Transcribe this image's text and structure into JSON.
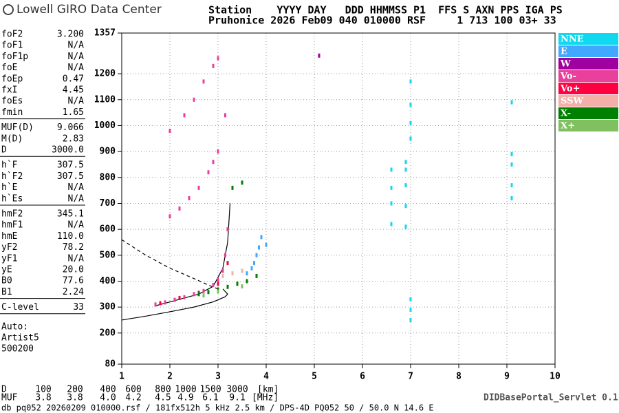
{
  "header": {
    "logo": "Lowell GIRO Data Center",
    "line1": "Station    YYYY DAY   DDD HHMMSS P1  FFS S AXN PPS IGA PS",
    "line2": "Pruhonice 2026 Feb09 040 010000 RSF     1 713 100 03+ 33"
  },
  "parameters": [
    [
      [
        "foF2",
        "3.200"
      ],
      [
        "foF1",
        "N/A"
      ],
      [
        "foF1p",
        "N/A"
      ],
      [
        "foE",
        "N/A"
      ],
      [
        "foEp",
        "0.47"
      ],
      [
        "fxI",
        "4.45"
      ],
      [
        "foEs",
        "N/A"
      ],
      [
        "fmin",
        "1.65"
      ]
    ],
    [
      [
        "MUF(D)",
        "9.066"
      ],
      [
        "M(D)",
        "2.83"
      ],
      [
        "D",
        "3000.0"
      ]
    ],
    [
      [
        "h`F",
        "307.5"
      ],
      [
        "h`F2",
        "307.5"
      ],
      [
        "h`E",
        "N/A"
      ],
      [
        "h`Es",
        "N/A"
      ]
    ],
    [
      [
        "hmF2",
        "345.1"
      ],
      [
        "hmF1",
        "N/A"
      ],
      [
        "hmE",
        "110.0"
      ],
      [
        "yF2",
        "78.2"
      ],
      [
        "yF1",
        "N/A"
      ],
      [
        "yE",
        "20.0"
      ],
      [
        "B0",
        "77.6"
      ],
      [
        "B1",
        "2.24"
      ]
    ],
    [
      [
        "C-level",
        "33"
      ]
    ]
  ],
  "autoscaler": [
    "Auto:",
    "Artist5",
    "500200"
  ],
  "chart_data": {
    "type": "scatter",
    "xlim": [
      1,
      10
    ],
    "xticks": [
      1,
      2,
      3,
      4,
      5,
      6,
      7,
      8,
      9,
      10
    ],
    "ylim": [
      80,
      1357
    ],
    "yticks": [
      80,
      200,
      300,
      400,
      500,
      600,
      700,
      800,
      900,
      1000,
      1100,
      1200,
      1357
    ],
    "grid": true,
    "series": [
      {
        "name": "NNE",
        "color": "#10d8f0",
        "x": [
          6.6,
          6.6,
          6.6,
          6.6,
          6.9,
          6.9,
          6.9,
          6.9,
          6.9,
          7.0,
          7.0,
          7.0,
          7.0,
          7.0,
          7.0,
          7.0,
          9.1,
          9.1,
          9.1,
          9.1,
          9.1
        ],
        "values": [
          620,
          700,
          760,
          830,
          610,
          690,
          770,
          830,
          860,
          250,
          290,
          330,
          950,
          1010,
          1080,
          1170,
          720,
          770,
          850,
          890,
          1090
        ]
      },
      {
        "name": "E",
        "color": "#40a8ff",
        "x": [
          3.6,
          3.7,
          3.75,
          3.8,
          3.85,
          3.9,
          4.0
        ],
        "values": [
          430,
          450,
          470,
          500,
          530,
          570,
          540
        ]
      },
      {
        "name": "W",
        "color": "#a000a0",
        "x": [
          5.1
        ],
        "values": [
          1270
        ]
      },
      {
        "name": "Vo-",
        "color": "#e8409c",
        "x": [
          1.7,
          1.9,
          2.1,
          2.3,
          2.5,
          2.7,
          2.9,
          3.0,
          3.1,
          3.15,
          3.2,
          2.0,
          2.2,
          2.4,
          2.6,
          2.8,
          2.9,
          3.0,
          2.0,
          2.3,
          2.5,
          2.7,
          2.9,
          3.0,
          3.15
        ],
        "values": [
          310,
          318,
          328,
          338,
          350,
          362,
          385,
          405,
          440,
          500,
          600,
          650,
          680,
          720,
          760,
          820,
          860,
          900,
          980,
          1040,
          1100,
          1170,
          1230,
          1260,
          1040
        ]
      },
      {
        "name": "Vo+",
        "color": "#ff0040",
        "x": [
          1.8,
          2.2,
          2.6,
          3.0,
          3.2
        ],
        "values": [
          315,
          335,
          355,
          390,
          470
        ]
      },
      {
        "name": "SSW",
        "color": "#f4b0a8",
        "x": [
          3.1,
          3.3,
          3.5
        ],
        "values": [
          420,
          430,
          440
        ]
      },
      {
        "name": "X-",
        "color": "#008000",
        "x": [
          2.6,
          2.8,
          3.0,
          3.2,
          3.4,
          3.6,
          3.8,
          3.3,
          3.5
        ],
        "values": [
          350,
          358,
          368,
          378,
          390,
          400,
          420,
          760,
          780
        ]
      },
      {
        "name": "X+",
        "color": "#80c060",
        "x": [
          2.7,
          3.0,
          3.5
        ],
        "values": [
          345,
          360,
          380
        ]
      }
    ],
    "lines": [
      {
        "style": "solid",
        "x": [
          1,
          1.5,
          2,
          2.5,
          2.9,
          3.15,
          3.2,
          3.1
        ],
        "values": [
          250,
          265,
          282,
          300,
          320,
          340,
          350,
          370
        ]
      },
      {
        "style": "solid",
        "x": [
          1.7,
          2.2,
          2.6,
          2.9,
          3.1,
          3.2,
          3.25
        ],
        "values": [
          305,
          330,
          350,
          380,
          450,
          550,
          700
        ]
      },
      {
        "style": "dashed",
        "x": [
          1,
          1.5,
          2,
          2.5,
          2.8,
          3.0
        ],
        "values": [
          560,
          500,
          450,
          410,
          385,
          370
        ]
      }
    ]
  },
  "footer": {
    "d_label": "D",
    "d_values": [
      "100",
      "200",
      "400",
      "600",
      "800",
      "1000",
      "1500",
      "3000"
    ],
    "d_unit": "[km]",
    "muf_label": "MUF",
    "muf_values": [
      "3.8",
      "3.8",
      "4.0",
      "4.2",
      "4.5",
      "4.9",
      "6.1",
      "9.1"
    ],
    "muf_unit": "[MHz]",
    "servlet": "DIDBasePortal_Servlet 0.1",
    "info": "db pq052 20260209 010000.rsf / 181fx512h 5 kHz 2.5 km / DPS-4D PQ052 50 / 50.0 N 14.6 E"
  }
}
